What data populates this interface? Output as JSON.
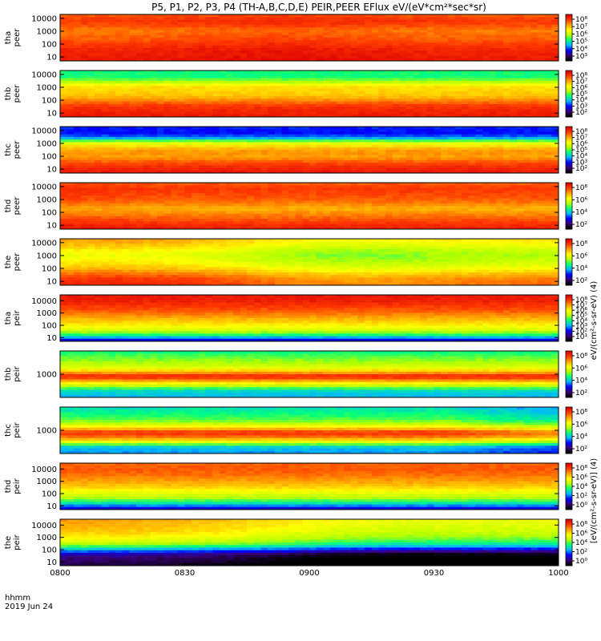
{
  "chart_data": {
    "type": "heatmap",
    "title": "P5, P1, P2, P3, P4 (TH-A,B,C,D,E) PEIR,PEER EFlux eV/(eV*cm²*sec*sr)",
    "xlabel": "hhmm",
    "date_label": "2019 Jun 24",
    "x_ticks": [
      "0800",
      "0830",
      "0900",
      "0930",
      "1000"
    ],
    "xlim": [
      "08:00",
      "10:00"
    ],
    "colorbar_label_peer": "eV/(cm²-s-sr-eV) (4)",
    "colorbar_label_peir": "[eV/(cm²-s-sr-eV)] (4)",
    "colormap": [
      "#000000",
      "#3a0078",
      "#0000ff",
      "#00b4ff",
      "#00ff7f",
      "#b4ff00",
      "#ffff00",
      "#ffa500",
      "#ff3c00",
      "#dc0000"
    ],
    "panels": [
      {
        "probe": "tha",
        "species": "peer",
        "ylim": [
          5,
          20000
        ],
        "yscale": "log",
        "y_ticks": [
          "10",
          "100",
          "1000",
          "10000"
        ],
        "cb_ticks": [
          "10⁸",
          "10⁷",
          "10⁶",
          "10⁵",
          "10⁴",
          "10³"
        ],
        "profile": [
          0.95,
          0.94,
          0.93,
          0.9,
          0.86,
          0.84,
          0.82,
          0.87,
          0.9,
          0.86
        ],
        "time_trend": [
          0,
          0,
          0.01,
          0.02,
          0.03,
          0.02,
          0.01,
          0,
          0,
          0
        ]
      },
      {
        "probe": "thb",
        "species": "peer",
        "ylim": [
          5,
          20000
        ],
        "yscale": "log",
        "y_ticks": [
          "10",
          "100",
          "1000",
          "10000"
        ],
        "cb_ticks": [
          "10⁸",
          "10⁷",
          "10⁶",
          "10⁵",
          "10⁴",
          "10³",
          "10²"
        ],
        "profile": [
          0.95,
          0.93,
          0.9,
          0.82,
          0.74,
          0.72,
          0.7,
          0.55,
          0.45,
          0.45
        ],
        "time_trend": [
          0,
          0,
          0,
          0,
          0,
          0,
          0,
          0,
          0,
          0
        ]
      },
      {
        "probe": "thc",
        "species": "peer",
        "ylim": [
          5,
          20000
        ],
        "yscale": "log",
        "y_ticks": [
          "10",
          "100",
          "1000",
          "10000"
        ],
        "cb_ticks": [
          "10⁸",
          "10⁷",
          "10⁶",
          "10⁵",
          "10⁴",
          "10³",
          "10²"
        ],
        "profile": [
          0.95,
          0.92,
          0.86,
          0.78,
          0.8,
          0.74,
          0.6,
          0.3,
          0.22,
          0.24
        ],
        "time_trend": [
          0,
          0,
          0,
          0,
          0,
          0,
          0,
          0,
          0,
          0
        ]
      },
      {
        "probe": "thd",
        "species": "peer",
        "ylim": [
          5,
          20000
        ],
        "yscale": "log",
        "y_ticks": [
          "10",
          "100",
          "1000",
          "10000"
        ],
        "cb_ticks": [
          "10⁸",
          "10⁶",
          "10⁴",
          "10²"
        ],
        "profile": [
          0.94,
          0.9,
          0.85,
          0.8,
          0.76,
          0.82,
          0.86,
          0.88,
          0.9,
          0.86
        ],
        "time_trend": [
          0.02,
          0.01,
          0,
          0,
          0,
          0,
          0,
          0,
          0,
          0
        ]
      },
      {
        "probe": "the",
        "species": "peer",
        "ylim": [
          5,
          20000
        ],
        "yscale": "log",
        "y_ticks": [
          "10",
          "100",
          "1000",
          "10000"
        ],
        "cb_ticks": [
          "10⁸",
          "10⁶",
          "10⁴",
          "10²"
        ],
        "profile": [
          0.88,
          0.86,
          0.8,
          0.72,
          0.66,
          0.62,
          0.6,
          0.64,
          0.7,
          0.74
        ],
        "time_trend": [
          0.04,
          0.05,
          0.03,
          0,
          -0.05,
          -0.08,
          -0.08,
          -0.06,
          -0.05,
          -0.04
        ]
      },
      {
        "probe": "tha",
        "species": "peir",
        "ylim": [
          5,
          30000
        ],
        "yscale": "log",
        "y_ticks": [
          "10",
          "100",
          "1000",
          "10000"
        ],
        "cb_ticks": [
          "10⁸",
          "10⁷",
          "10⁶",
          "10⁵",
          "10⁴",
          "10³",
          "10²",
          "10¹"
        ],
        "profile": [
          0.2,
          0.45,
          0.6,
          0.68,
          0.74,
          0.8,
          0.86,
          0.9,
          0.94,
          0.95
        ],
        "time_trend": [
          0,
          0,
          0,
          0,
          0,
          0,
          0,
          0,
          0,
          0
        ]
      },
      {
        "probe": "thb",
        "species": "peir",
        "ylim": [
          100,
          10000
        ],
        "yscale": "log",
        "y_ticks": [
          "1000"
        ],
        "cb_ticks": [
          "10⁸",
          "10⁶",
          "10⁴",
          "10²"
        ],
        "profile": [
          0.35,
          0.38,
          0.55,
          0.75,
          0.95,
          0.75,
          0.6,
          0.55,
          0.5,
          0.45
        ],
        "time_trend": [
          0,
          0,
          0,
          0,
          0,
          0,
          0,
          0,
          0,
          0
        ]
      },
      {
        "probe": "thc",
        "species": "peir",
        "ylim": [
          100,
          10000
        ],
        "yscale": "log",
        "y_ticks": [
          "1000"
        ],
        "cb_ticks": [
          "10⁸",
          "10⁶",
          "10⁴",
          "10²"
        ],
        "profile": [
          0.32,
          0.36,
          0.6,
          0.82,
          0.92,
          0.72,
          0.55,
          0.48,
          0.44,
          0.4
        ],
        "time_trend": [
          0,
          0,
          0,
          0,
          0,
          0,
          0,
          0,
          -0.05,
          -0.08
        ]
      },
      {
        "probe": "thd",
        "species": "peir",
        "ylim": [
          5,
          30000
        ],
        "yscale": "log",
        "y_ticks": [
          "10",
          "100",
          "1000",
          "10000"
        ],
        "cb_ticks": [
          "10⁸",
          "10⁶",
          "10⁴",
          "10²",
          "10⁰"
        ],
        "profile": [
          0.2,
          0.4,
          0.55,
          0.62,
          0.7,
          0.76,
          0.8,
          0.84,
          0.86,
          0.85
        ],
        "time_trend": [
          0,
          0,
          0,
          0,
          0,
          0,
          0,
          0,
          0,
          0
        ]
      },
      {
        "probe": "the",
        "species": "peir",
        "ylim": [
          5,
          30000
        ],
        "yscale": "log",
        "y_ticks": [
          "10",
          "100",
          "1000",
          "10000"
        ],
        "cb_ticks": [
          "10⁸",
          "10⁶",
          "10⁴",
          "10²",
          "10⁰"
        ],
        "profile": [
          0.02,
          0.05,
          0.1,
          0.3,
          0.5,
          0.6,
          0.66,
          0.7,
          0.72,
          0.74
        ],
        "time_trend": [
          0.05,
          0.04,
          0.02,
          0,
          -0.04,
          -0.08,
          -0.1,
          -0.1,
          -0.1,
          -0.1
        ]
      }
    ]
  }
}
